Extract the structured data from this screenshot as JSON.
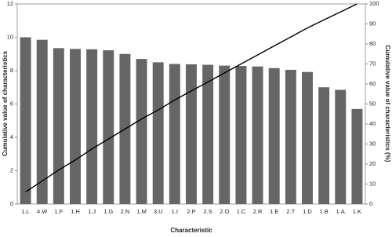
{
  "chart_data": {
    "type": "pareto",
    "xlabel": "Characteristic",
    "ylabel": "Cumulative value of characteristics",
    "y2label": "Cumulative value of characteristics (%)",
    "categories": [
      "1.L",
      "4.W",
      "1.F",
      "1.H",
      "1.J",
      "1.G",
      "2.N",
      "1.M",
      "3.U",
      "1.I",
      "2.P",
      "2.S",
      "2.O",
      "1.C",
      "2.R",
      "1.E",
      "2.T",
      "1.D",
      "1.B",
      "1.A",
      "1.K"
    ],
    "series": [
      {
        "type": "bar",
        "color": "#666666",
        "values": [
          10.0,
          9.85,
          9.35,
          9.3,
          9.28,
          9.22,
          9.0,
          8.7,
          8.5,
          8.4,
          8.38,
          8.35,
          8.3,
          8.28,
          8.25,
          8.15,
          8.05,
          7.92,
          7.0,
          6.85,
          5.7
        ]
      },
      {
        "type": "line",
        "axis": "y2",
        "color": "#000000",
        "values": [
          6,
          11.5,
          17,
          22,
          27.5,
          32.5,
          37.5,
          42.5,
          47,
          52,
          56.5,
          61,
          65.5,
          70,
          74.5,
          79,
          83.5,
          88,
          92,
          96,
          100
        ]
      }
    ],
    "ylim": [
      0,
      12
    ],
    "yticks": [
      0,
      2,
      4,
      6,
      8,
      10,
      12
    ],
    "y2lim": [
      0,
      100
    ],
    "y2ticks": [
      0,
      10,
      20,
      30,
      40,
      50,
      60,
      70,
      80,
      90,
      100
    ]
  }
}
